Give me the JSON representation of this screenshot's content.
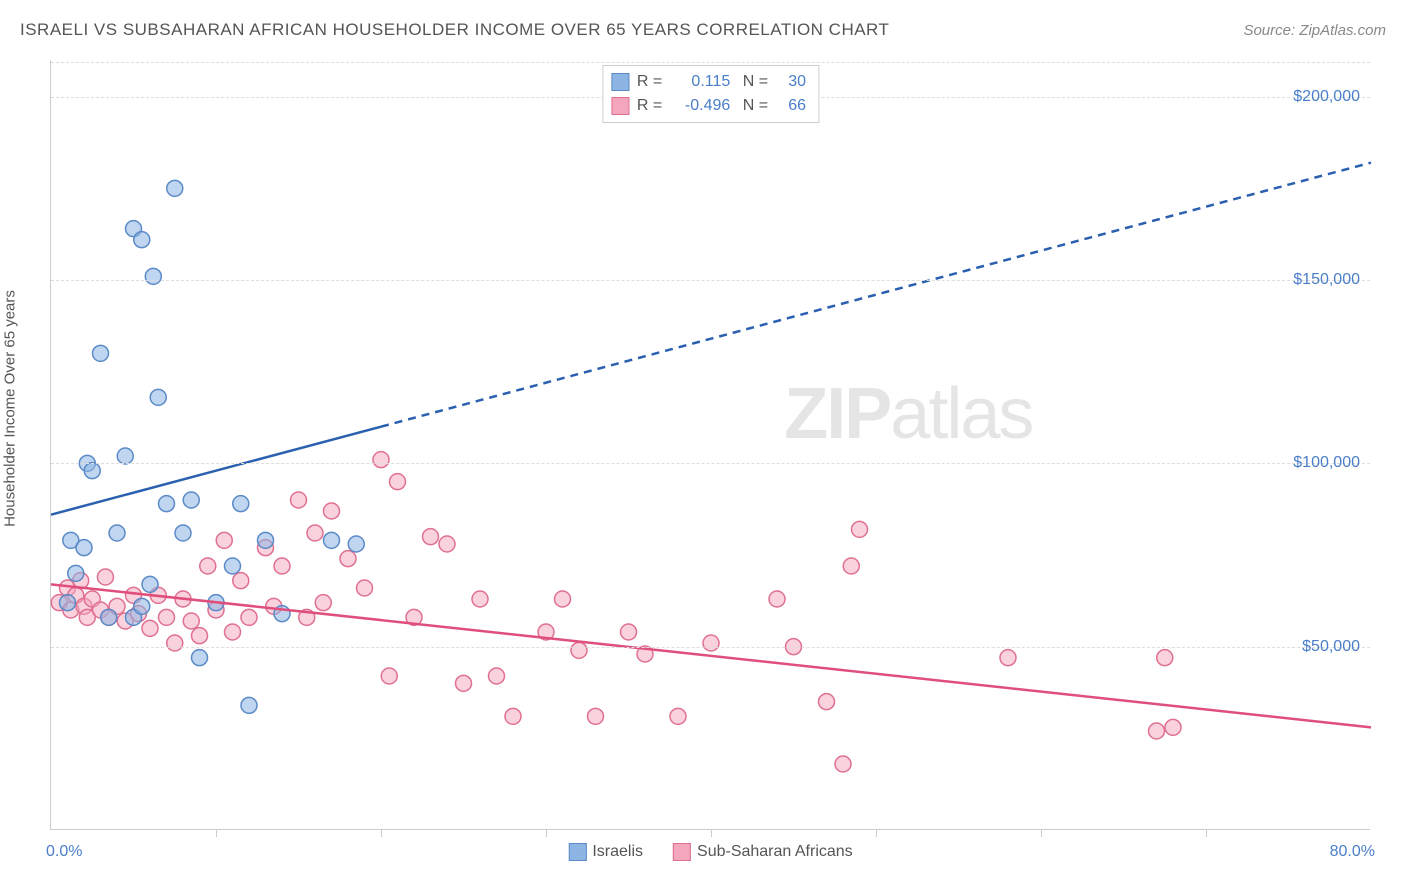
{
  "title": "ISRAELI VS SUBSAHARAN AFRICAN HOUSEHOLDER INCOME OVER 65 YEARS CORRELATION CHART",
  "source": "Source: ZipAtlas.com",
  "y_axis_label": "Householder Income Over 65 years",
  "watermark_part1": "ZIP",
  "watermark_part2": "atlas",
  "chart": {
    "type": "scatter",
    "xlim": [
      0,
      80
    ],
    "ylim": [
      0,
      210000
    ],
    "x_min_label": "0.0%",
    "x_max_label": "80.0%",
    "y_ticks": [
      50000,
      100000,
      150000,
      200000
    ],
    "y_tick_labels": [
      "$50,000",
      "$100,000",
      "$150,000",
      "$200,000"
    ],
    "x_tick_positions": [
      10,
      20,
      30,
      40,
      50,
      60,
      70
    ],
    "background_color": "#ffffff",
    "grid_color": "#dddddd",
    "marker_radius": 8,
    "marker_stroke_width": 1.5,
    "series": [
      {
        "name": "Israelis",
        "label": "Israelis",
        "fill_color": "#8db5e3",
        "stroke_color": "#5a8ac7",
        "fill_opacity": 0.55,
        "line_color": "#2b5fb0",
        "line_width": 2.5,
        "R": "0.115",
        "N": "30",
        "regression": {
          "x1": 0,
          "y1": 86000,
          "x2_solid": 20,
          "y2_solid": 110000,
          "x2": 80,
          "y2": 182000
        },
        "points": [
          {
            "x": 1.0,
            "y": 62000
          },
          {
            "x": 1.2,
            "y": 79000
          },
          {
            "x": 1.5,
            "y": 70000
          },
          {
            "x": 2.0,
            "y": 77000
          },
          {
            "x": 2.2,
            "y": 100000
          },
          {
            "x": 2.5,
            "y": 98000
          },
          {
            "x": 3.0,
            "y": 130000
          },
          {
            "x": 3.5,
            "y": 58000
          },
          {
            "x": 4.0,
            "y": 81000
          },
          {
            "x": 4.5,
            "y": 102000
          },
          {
            "x": 5.0,
            "y": 164000
          },
          {
            "x": 5.5,
            "y": 161000
          },
          {
            "x": 5.0,
            "y": 58000
          },
          {
            "x": 5.5,
            "y": 61000
          },
          {
            "x": 6.0,
            "y": 67000
          },
          {
            "x": 6.2,
            "y": 151000
          },
          {
            "x": 6.5,
            "y": 118000
          },
          {
            "x": 7.0,
            "y": 89000
          },
          {
            "x": 7.5,
            "y": 175000
          },
          {
            "x": 8.0,
            "y": 81000
          },
          {
            "x": 8.5,
            "y": 90000
          },
          {
            "x": 9.0,
            "y": 47000
          },
          {
            "x": 10.0,
            "y": 62000
          },
          {
            "x": 11.0,
            "y": 72000
          },
          {
            "x": 11.5,
            "y": 89000
          },
          {
            "x": 12.0,
            "y": 34000
          },
          {
            "x": 13.0,
            "y": 79000
          },
          {
            "x": 14.0,
            "y": 59000
          },
          {
            "x": 17.0,
            "y": 79000
          },
          {
            "x": 18.5,
            "y": 78000
          }
        ]
      },
      {
        "name": "Sub-Saharan Africans",
        "label": "Sub-Saharan Africans",
        "fill_color": "#f4a6bd",
        "stroke_color": "#e0708f",
        "fill_opacity": 0.5,
        "line_color": "#e04f7c",
        "line_width": 2.5,
        "R": "-0.496",
        "N": "66",
        "regression": {
          "x1": 0,
          "y1": 67000,
          "x2_solid": 80,
          "y2_solid": 28000,
          "x2": 80,
          "y2": 28000
        },
        "points": [
          {
            "x": 0.5,
            "y": 62000
          },
          {
            "x": 1.0,
            "y": 66000
          },
          {
            "x": 1.2,
            "y": 60000
          },
          {
            "x": 1.5,
            "y": 64000
          },
          {
            "x": 1.8,
            "y": 68000
          },
          {
            "x": 2.0,
            "y": 61000
          },
          {
            "x": 2.2,
            "y": 58000
          },
          {
            "x": 2.5,
            "y": 63000
          },
          {
            "x": 3.0,
            "y": 60000
          },
          {
            "x": 3.3,
            "y": 69000
          },
          {
            "x": 3.5,
            "y": 58000
          },
          {
            "x": 4.0,
            "y": 61000
          },
          {
            "x": 4.5,
            "y": 57000
          },
          {
            "x": 5.0,
            "y": 64000
          },
          {
            "x": 5.3,
            "y": 59000
          },
          {
            "x": 6.0,
            "y": 55000
          },
          {
            "x": 6.5,
            "y": 64000
          },
          {
            "x": 7.0,
            "y": 58000
          },
          {
            "x": 7.5,
            "y": 51000
          },
          {
            "x": 8.0,
            "y": 63000
          },
          {
            "x": 8.5,
            "y": 57000
          },
          {
            "x": 9.0,
            "y": 53000
          },
          {
            "x": 9.5,
            "y": 72000
          },
          {
            "x": 10.0,
            "y": 60000
          },
          {
            "x": 10.5,
            "y": 79000
          },
          {
            "x": 11.0,
            "y": 54000
          },
          {
            "x": 11.5,
            "y": 68000
          },
          {
            "x": 12.0,
            "y": 58000
          },
          {
            "x": 13.0,
            "y": 77000
          },
          {
            "x": 13.5,
            "y": 61000
          },
          {
            "x": 14.0,
            "y": 72000
          },
          {
            "x": 15.0,
            "y": 90000
          },
          {
            "x": 15.5,
            "y": 58000
          },
          {
            "x": 16.0,
            "y": 81000
          },
          {
            "x": 16.5,
            "y": 62000
          },
          {
            "x": 17.0,
            "y": 87000
          },
          {
            "x": 18.0,
            "y": 74000
          },
          {
            "x": 19.0,
            "y": 66000
          },
          {
            "x": 20.0,
            "y": 101000
          },
          {
            "x": 20.5,
            "y": 42000
          },
          {
            "x": 21.0,
            "y": 95000
          },
          {
            "x": 22.0,
            "y": 58000
          },
          {
            "x": 23.0,
            "y": 80000
          },
          {
            "x": 24.0,
            "y": 78000
          },
          {
            "x": 25.0,
            "y": 40000
          },
          {
            "x": 26.0,
            "y": 63000
          },
          {
            "x": 27.0,
            "y": 42000
          },
          {
            "x": 28.0,
            "y": 31000
          },
          {
            "x": 30.0,
            "y": 54000
          },
          {
            "x": 31.0,
            "y": 63000
          },
          {
            "x": 32.0,
            "y": 49000
          },
          {
            "x": 33.0,
            "y": 31000
          },
          {
            "x": 35.0,
            "y": 54000
          },
          {
            "x": 36.0,
            "y": 48000
          },
          {
            "x": 38.0,
            "y": 31000
          },
          {
            "x": 40.0,
            "y": 51000
          },
          {
            "x": 44.0,
            "y": 63000
          },
          {
            "x": 45.0,
            "y": 50000
          },
          {
            "x": 47.0,
            "y": 35000
          },
          {
            "x": 48.0,
            "y": 18000
          },
          {
            "x": 48.5,
            "y": 72000
          },
          {
            "x": 49.0,
            "y": 82000
          },
          {
            "x": 58.0,
            "y": 47000
          },
          {
            "x": 67.0,
            "y": 27000
          },
          {
            "x": 67.5,
            "y": 47000
          },
          {
            "x": 68.0,
            "y": 28000
          }
        ]
      }
    ],
    "legend_swatch_border": {
      "israeli": "#5a8ac7",
      "subsaharan": "#e0708f"
    }
  }
}
